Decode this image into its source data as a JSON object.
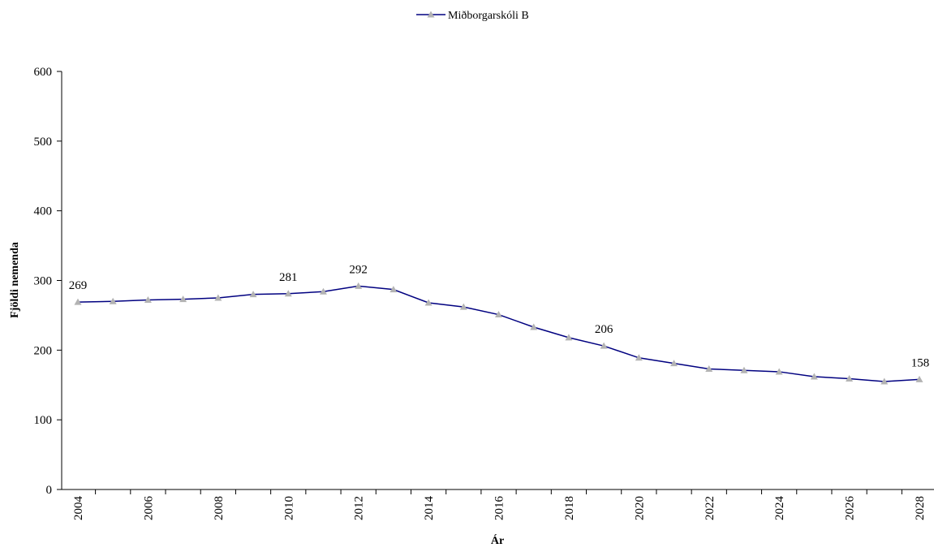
{
  "chart_data": {
    "type": "line",
    "title": "",
    "xlabel": "Ár",
    "ylabel": "Fjöldi nemenda",
    "ylim": [
      0,
      600
    ],
    "yticks": [
      0,
      100,
      200,
      300,
      400,
      500,
      600
    ],
    "xlim": [
      2004,
      2028
    ],
    "xtick_labels": [
      "2004",
      "2006",
      "2008",
      "2010",
      "2012",
      "2014",
      "2016",
      "2018",
      "2020",
      "2022",
      "2024",
      "2026",
      "2028"
    ],
    "grid": false,
    "legend_position": "top-center",
    "series": [
      {
        "name": "Miðborgarskóli B",
        "line_color": "#000080",
        "marker": "triangle",
        "marker_color": "#b3b3b3",
        "x": [
          2004,
          2005,
          2006,
          2007,
          2008,
          2009,
          2010,
          2011,
          2012,
          2013,
          2014,
          2015,
          2016,
          2017,
          2018,
          2019,
          2020,
          2021,
          2022,
          2023,
          2024,
          2025,
          2026,
          2027,
          2028
        ],
        "values": [
          269,
          270,
          272,
          273,
          275,
          280,
          281,
          284,
          292,
          287,
          268,
          262,
          251,
          233,
          218,
          206,
          189,
          181,
          173,
          171,
          169,
          162,
          159,
          155,
          158
        ],
        "data_labels": [
          {
            "x": 2004,
            "text": "269"
          },
          {
            "x": 2010,
            "text": "281"
          },
          {
            "x": 2012,
            "text": "292"
          },
          {
            "x": 2019,
            "text": "206"
          },
          {
            "x": 2028,
            "text": "158"
          }
        ]
      }
    ]
  }
}
